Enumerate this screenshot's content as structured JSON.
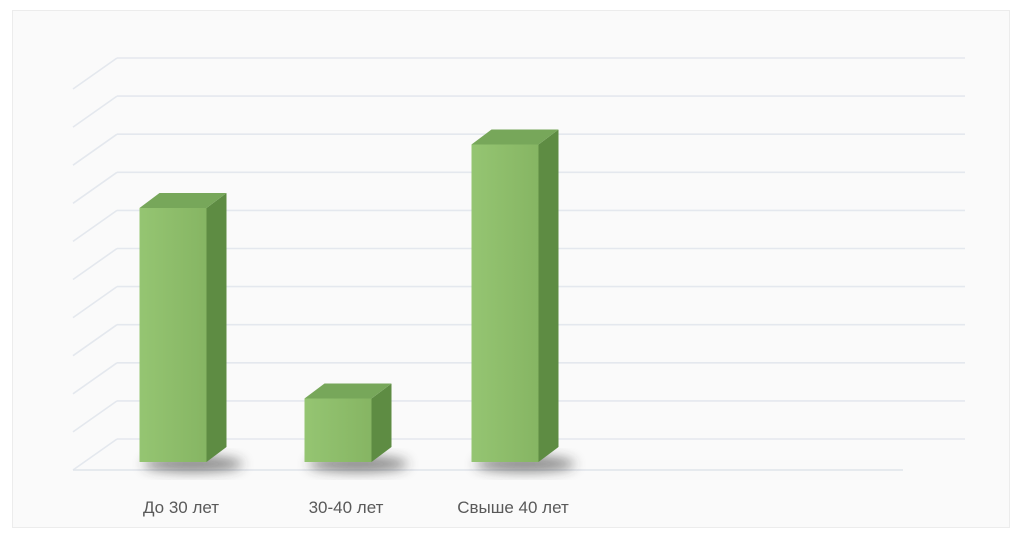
{
  "chart_data": {
    "type": "bar",
    "style": "3d-column",
    "categories": [
      "До 30 лет",
      "30-40 лет",
      "Свыше 40 лет"
    ],
    "values": [
      40,
      10,
      50
    ],
    "ylim": [
      0,
      60
    ],
    "grid": true,
    "gridlines": 10,
    "colors": {
      "front": "#8fbe6c",
      "side": "#5e8c43",
      "top": "#77a75a",
      "grid": "#e4e8ee",
      "floor_grid": "#e0e4ea",
      "shadow": "#2a2a2a"
    }
  }
}
